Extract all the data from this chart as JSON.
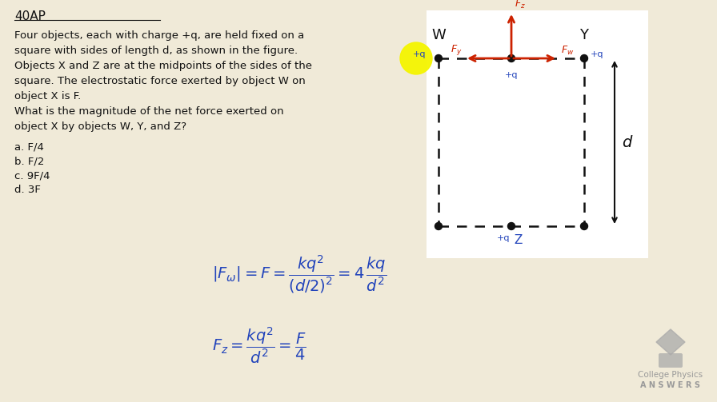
{
  "bg_color": "#f0ead8",
  "white_color": "#ffffff",
  "black_color": "#111111",
  "blue_color": "#2244bb",
  "red_color": "#cc2200",
  "gray_color": "#aaaaaa",
  "yellow_color": "#f5f500",
  "title": "40AP",
  "problem_lines": [
    "Four objects, each with charge +q, are held fixed on a",
    "square with sides of length d, as shown in the figure.",
    "Objects X and Z are at the midpoints of the sides of the",
    "square. The electrostatic force exerted by object W on",
    "object X is F.",
    "What is the magnitude of the net force exerted on",
    "object X by objects W, Y, and Z?"
  ],
  "choices": [
    "a. F/4",
    "b. F/2",
    "c. 9F/4",
    "d. 3F"
  ]
}
